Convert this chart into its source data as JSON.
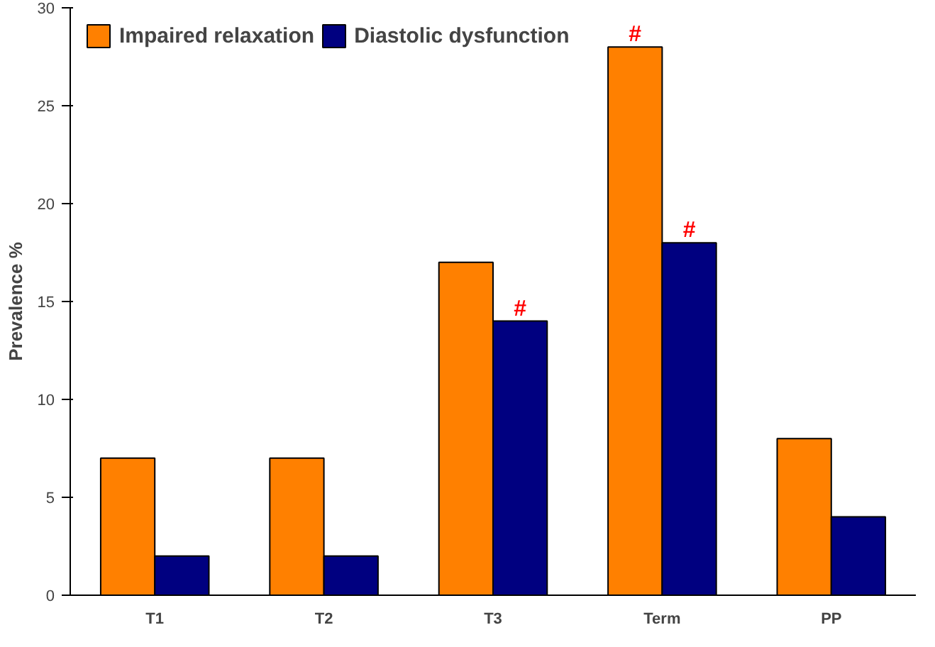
{
  "chart_data": {
    "type": "bar",
    "ylabel": "Prevalence %",
    "categories": [
      "T1",
      "T2",
      "T3",
      "Term",
      "PP"
    ],
    "series": [
      {
        "name": "Impaired relaxation",
        "color": "#ff8000",
        "values": [
          7,
          7,
          17,
          28,
          8
        ]
      },
      {
        "name": "Diastolic dysfunction",
        "color": "#000080",
        "values": [
          2,
          2,
          14,
          18,
          4
        ]
      }
    ],
    "ylim": [
      0,
      30
    ],
    "yticks": [
      0,
      5,
      10,
      15,
      20,
      25,
      30
    ],
    "grid": false,
    "legend": "top",
    "annotations": [
      {
        "text": "#",
        "x": "T3",
        "y": 14
      },
      {
        "text": "#",
        "x": "Term",
        "y": 28
      },
      {
        "text": "#",
        "x": "Term",
        "y": 18
      }
    ]
  }
}
